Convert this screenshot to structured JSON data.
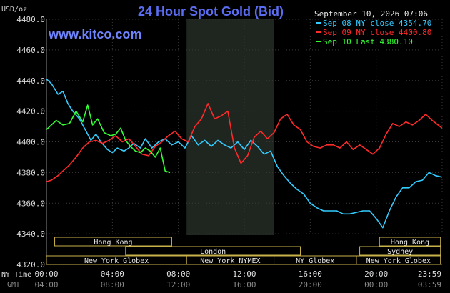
{
  "chart_data": {
    "type": "line",
    "title": "24 Hour Spot Gold (Bid)",
    "site": "www.kitco.com",
    "ylabel": "USD/oz",
    "ylim": [
      4320,
      4480
    ],
    "yticks": [
      "4480.0",
      "4460.0",
      "4440.0",
      "4420.0",
      "4400.0",
      "4380.0",
      "4360.0",
      "4340.0",
      "4320.0"
    ],
    "timestamp": "September 10, 2026 07:06",
    "x_axis": {
      "ny_label": "NY Time",
      "gmt_label": "GMT",
      "ny_ticks": [
        "00:00",
        "04:00",
        "08:00",
        "12:00",
        "16:00",
        "20:00",
        "23:59"
      ],
      "gmt_ticks": [
        "04:00",
        "08:00",
        "12:00",
        "16:00",
        "20:00",
        "00:00",
        "03:59"
      ]
    },
    "legend": [
      {
        "label": "Sep 08 NY close 4354.70",
        "color": "#33ccff"
      },
      {
        "label": "Sep 09 NY close 4400.80",
        "color": "#ff2a2a"
      },
      {
        "label": "Sep 10 Last 4380.10",
        "color": "#33ff33"
      }
    ],
    "sessions": [
      {
        "label": "Hong Kong",
        "start": 0.5,
        "end": 7.6,
        "row": 0
      },
      {
        "label": "London",
        "start": 4.8,
        "end": 15.4,
        "row": 1
      },
      {
        "label": "New York Globex",
        "start": 0,
        "end": 8.5,
        "row": 2
      },
      {
        "label": "New York NYMEX",
        "start": 8.5,
        "end": 13.8,
        "row": 2
      },
      {
        "label": "NY Globex",
        "start": 13.8,
        "end": 18.8,
        "row": 2
      },
      {
        "label": "Hong Kong",
        "start": 20.2,
        "end": 23.9,
        "row": 0
      },
      {
        "label": "Sydney",
        "start": 19.0,
        "end": 23.9,
        "row": 1
      },
      {
        "label": "New York Globex",
        "start": 18.8,
        "end": 23.9,
        "row": 2
      }
    ],
    "highlight_hours": [
      8.5,
      13.8
    ],
    "series": [
      {
        "name": "Sep 08 NY close 4354.70",
        "color": "#33ccff",
        "x": [
          0,
          0.3,
          0.7,
          1.0,
          1.3,
          1.6,
          2.0,
          2.3,
          2.7,
          3.0,
          3.3,
          3.7,
          4.0,
          4.3,
          4.7,
          5.0,
          5.3,
          5.7,
          6.0,
          6.4,
          6.8,
          7.2,
          7.6,
          8.0,
          8.4,
          8.8,
          9.2,
          9.6,
          10.0,
          10.4,
          10.8,
          11.2,
          11.6,
          12.0,
          12.4,
          12.8,
          13.2,
          13.6,
          14.0,
          14.4,
          14.8,
          15.2,
          15.6,
          16.0,
          16.4,
          16.8,
          17.2,
          17.6,
          18.0,
          18.4,
          18.8,
          19.2,
          19.6,
          20.0,
          20.4,
          20.8,
          21.2,
          21.6,
          22.0,
          22.4,
          22.8,
          23.2,
          23.6,
          23.99
        ],
        "y": [
          4441,
          4438,
          4431,
          4433,
          4425,
          4420,
          4415,
          4409,
          4401,
          4405,
          4400,
          4395,
          4393,
          4396,
          4394,
          4396,
          4399,
          4396,
          4402,
          4396,
          4400,
          4402,
          4398,
          4400,
          4396,
          4404,
          4398,
          4401,
          4397,
          4401,
          4398,
          4396,
          4400,
          4395,
          4401,
          4397,
          4392,
          4394,
          4384,
          4378,
          4373,
          4369,
          4366,
          4360,
          4357,
          4355,
          4355,
          4355,
          4353,
          4353,
          4354,
          4355,
          4355,
          4350,
          4344,
          4355,
          4364,
          4370,
          4370,
          4374,
          4375,
          4380,
          4378,
          4377
        ]
      },
      {
        "name": "Sep 09 NY close 4400.80",
        "color": "#ff2a2a",
        "x": [
          0,
          0.3,
          0.7,
          1.0,
          1.4,
          1.8,
          2.2,
          2.6,
          3.0,
          3.4,
          3.8,
          4.2,
          4.6,
          5.0,
          5.4,
          5.8,
          6.2,
          6.6,
          7.0,
          7.4,
          7.8,
          8.2,
          8.6,
          9.0,
          9.4,
          9.8,
          10.2,
          10.6,
          11.0,
          11.4,
          11.8,
          12.2,
          12.6,
          13.0,
          13.4,
          13.8,
          14.2,
          14.6,
          15.0,
          15.4,
          15.8,
          16.2,
          16.6,
          17.0,
          17.4,
          17.8,
          18.2,
          18.6,
          19.0,
          19.4,
          19.8,
          20.2,
          20.6,
          21.0,
          21.4,
          21.8,
          22.2,
          22.6,
          23.0,
          23.4,
          23.99
        ],
        "y": [
          4374,
          4375,
          4378,
          4381,
          4385,
          4390,
          4396,
          4400,
          4401,
          4399,
          4401,
          4404,
          4400,
          4402,
          4397,
          4392,
          4391,
          4397,
          4400,
          4404,
          4407,
          4402,
          4400,
          4410,
          4415,
          4425,
          4415,
          4417,
          4420,
          4396,
          4386,
          4391,
          4403,
          4407,
          4402,
          4406,
          4415,
          4418,
          4411,
          4408,
          4400,
          4397,
          4396,
          4398,
          4398,
          4396,
          4400,
          4395,
          4398,
          4395,
          4392,
          4396,
          4405,
          4412,
          4410,
          4413,
          4411,
          4414,
          4418,
          4414,
          4409
        ]
      },
      {
        "name": "Sep 10 Last 4380.10",
        "color": "#33ff33",
        "x": [
          0,
          0.3,
          0.6,
          1.0,
          1.4,
          1.8,
          2.2,
          2.5,
          2.8,
          3.1,
          3.5,
          3.9,
          4.2,
          4.5,
          4.8,
          5.1,
          5.4,
          5.7,
          6.0,
          6.3,
          6.6,
          6.9,
          7.2,
          7.5
        ],
        "y": [
          4408,
          4411,
          4414,
          4411,
          4412,
          4420,
          4413,
          4424,
          4411,
          4415,
          4406,
          4404,
          4405,
          4409,
          4401,
          4397,
          4394,
          4393,
          4396,
          4394,
          4390,
          4396,
          4381,
          4380
        ]
      }
    ]
  }
}
